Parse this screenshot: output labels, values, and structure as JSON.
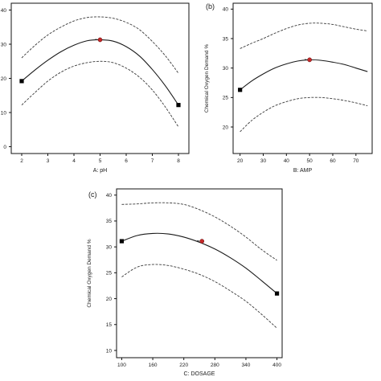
{
  "chart_data": [
    {
      "type": "line",
      "panel_label": "",
      "xlabel": "A: pH",
      "ylabel": "",
      "xlim": [
        1.6,
        8.4
      ],
      "ylim": [
        -2,
        42
      ],
      "xticks": [
        2,
        3,
        4,
        5,
        6,
        7,
        8
      ],
      "yticks": [
        0,
        10,
        20,
        30,
        40
      ],
      "ytick_labels": [
        "0",
        "10",
        "20",
        "30",
        "40"
      ],
      "series": [
        {
          "role": "fit",
          "style": "solid",
          "x": [
            2,
            2.5,
            3,
            3.5,
            4,
            4.5,
            5,
            5.5,
            6,
            6.5,
            7,
            7.5,
            8
          ],
          "y": [
            19.2,
            22.4,
            25.3,
            27.8,
            29.7,
            31.0,
            31.3,
            30.9,
            29.3,
            26.6,
            22.6,
            17.8,
            12.2
          ]
        },
        {
          "role": "upper-bound",
          "style": "dashed",
          "x": [
            2,
            2.5,
            3,
            3.5,
            4,
            4.5,
            5,
            5.5,
            6,
            6.5,
            7,
            7.5,
            8
          ],
          "y": [
            26,
            29.6,
            32.7,
            35.0,
            36.8,
            37.8,
            38.0,
            37.6,
            36.4,
            34.3,
            30.8,
            26.6,
            21.5
          ]
        },
        {
          "role": "lower-bound",
          "style": "dashed",
          "x": [
            2,
            2.5,
            3,
            3.5,
            4,
            4.5,
            5,
            5.5,
            6,
            6.5,
            7,
            7.5,
            8
          ],
          "y": [
            12.2,
            15.8,
            19.2,
            21.8,
            23.6,
            24.6,
            25.0,
            24.6,
            23.0,
            20.4,
            16.6,
            11.6,
            5.8
          ]
        }
      ],
      "endpoints": [
        {
          "x": 2,
          "y": 19.2,
          "marker": "square"
        },
        {
          "x": 8,
          "y": 12.2,
          "marker": "square"
        }
      ],
      "highlight_point": {
        "x": 5,
        "y": 31.3,
        "marker": "red-circle"
      }
    },
    {
      "type": "line",
      "panel_label": "(b)",
      "xlabel": "B: AMP",
      "ylabel": "Chemical Oxygen Demand %",
      "xlim": [
        17,
        77
      ],
      "ylim": [
        15.5,
        41
      ],
      "xticks": [
        20,
        30,
        40,
        50,
        60,
        70
      ],
      "yticks": [
        20,
        25,
        30,
        35,
        40
      ],
      "ytick_labels": [
        "20",
        "25",
        "30",
        "35",
        "40"
      ],
      "series": [
        {
          "role": "fit",
          "style": "solid",
          "x": [
            20,
            25,
            30,
            35,
            40,
            45,
            50,
            55,
            60,
            65,
            70,
            75
          ],
          "y": [
            26.3,
            27.8,
            29.0,
            30.0,
            30.7,
            31.2,
            31.4,
            31.3,
            31.0,
            30.6,
            30.0,
            29.4
          ]
        },
        {
          "role": "upper-bound",
          "style": "dashed",
          "x": [
            20,
            25,
            30,
            35,
            40,
            45,
            50,
            55,
            60,
            65,
            70,
            75
          ],
          "y": [
            33.3,
            34.2,
            35.0,
            35.9,
            36.7,
            37.3,
            37.6,
            37.6,
            37.4,
            37.0,
            36.6,
            36.3
          ]
        },
        {
          "role": "lower-bound",
          "style": "dashed",
          "x": [
            20,
            25,
            30,
            35,
            40,
            45,
            50,
            55,
            60,
            65,
            70,
            75
          ],
          "y": [
            19.2,
            21.1,
            22.5,
            23.6,
            24.3,
            24.8,
            25.0,
            25.0,
            24.8,
            24.5,
            24.1,
            23.6
          ]
        }
      ],
      "endpoints": [
        {
          "x": 20,
          "y": 26.3,
          "marker": "square"
        }
      ],
      "highlight_point": {
        "x": 50,
        "y": 31.4,
        "marker": "red-circle"
      }
    },
    {
      "type": "line",
      "panel_label": "(c)",
      "xlabel": "C: DOSAGE",
      "ylabel": "Chemical Oxygen Demand %",
      "xlim": [
        90,
        410
      ],
      "ylim": [
        8.6,
        41.2
      ],
      "xticks": [
        100,
        160,
        220,
        280,
        340,
        400
      ],
      "yticks": [
        10,
        15,
        20,
        25,
        30,
        35,
        40
      ],
      "ytick_labels": [
        "10",
        "15",
        "20",
        "25",
        "30",
        "35",
        "40"
      ],
      "series": [
        {
          "role": "fit",
          "style": "solid",
          "x": [
            100,
            130,
            160,
            190,
            220,
            250,
            280,
            310,
            340,
            370,
            400
          ],
          "y": [
            31.1,
            32.2,
            32.6,
            32.5,
            31.9,
            30.9,
            29.6,
            27.9,
            25.9,
            23.5,
            21.0
          ]
        },
        {
          "role": "upper-bound",
          "style": "dashed",
          "x": [
            100,
            130,
            160,
            190,
            220,
            250,
            280,
            310,
            340,
            370,
            400
          ],
          "y": [
            38.2,
            38.3,
            38.5,
            38.5,
            38.2,
            37.2,
            35.8,
            34.0,
            31.9,
            29.5,
            27.4
          ]
        },
        {
          "role": "lower-bound",
          "style": "dashed",
          "x": [
            100,
            130,
            160,
            190,
            220,
            250,
            280,
            310,
            340,
            370,
            400
          ],
          "y": [
            24.2,
            26.1,
            26.6,
            26.4,
            25.7,
            24.7,
            23.3,
            21.5,
            19.5,
            17.0,
            14.3
          ]
        }
      ],
      "endpoints": [
        {
          "x": 100,
          "y": 31.1,
          "marker": "square"
        },
        {
          "x": 400,
          "y": 21.0,
          "marker": "square"
        }
      ],
      "highlight_point": {
        "x": 255,
        "y": 31.1,
        "marker": "red-circle"
      }
    }
  ],
  "colors": {
    "axis": "#111111",
    "fit": "#1a1a1a",
    "bounds": "#3a3a3a",
    "endpoint": "#000000",
    "highlight": "#c62828"
  }
}
